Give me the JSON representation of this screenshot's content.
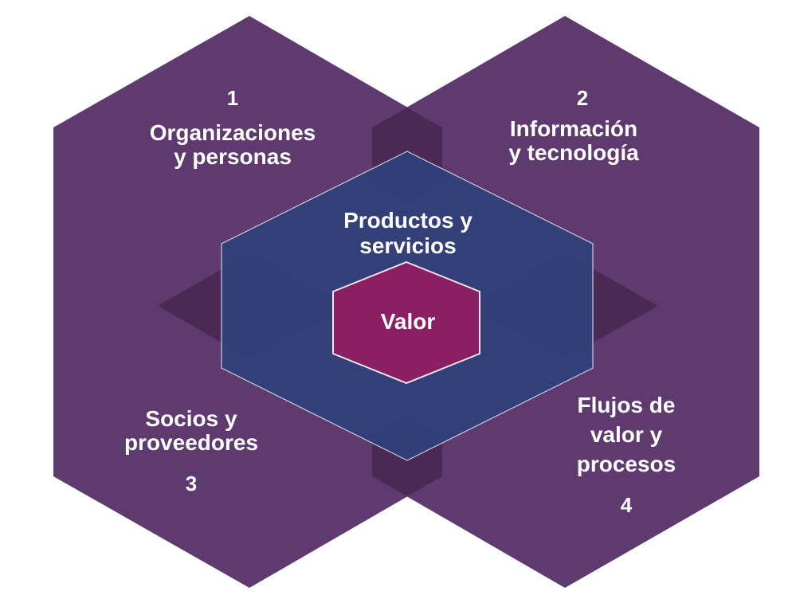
{
  "diagram": {
    "dimensions": [
      {
        "number": "1",
        "lines": [
          "Organizaciones",
          "y personas"
        ]
      },
      {
        "number": "2",
        "lines": [
          "Información",
          "y tecnología"
        ]
      },
      {
        "number": "3",
        "lines": [
          "Socios y",
          "proveedores"
        ]
      },
      {
        "number": "4",
        "lines": [
          "Flujos de",
          "valor y",
          "procesos"
        ]
      }
    ],
    "center": {
      "lines": [
        "Productos y",
        "servicios"
      ]
    },
    "core": {
      "label": "Valor"
    }
  },
  "colors": {
    "outer_hexagon": "#5e3a6e",
    "overlap": "#4a2a55",
    "center_hexagon": "#2f3f7a",
    "value_hexagon": "#8a1f63",
    "text": "#ffffff"
  }
}
